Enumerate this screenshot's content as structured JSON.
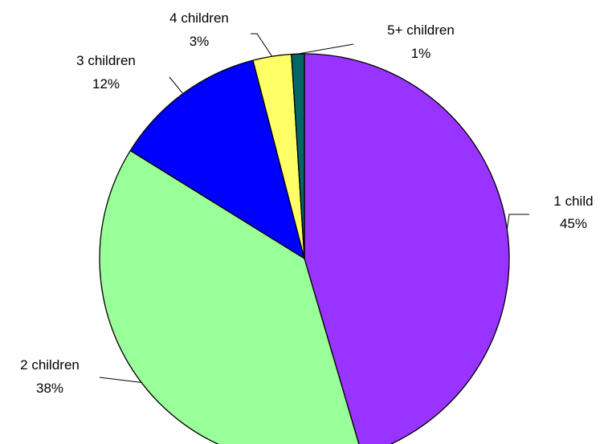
{
  "chart_data": {
    "type": "pie",
    "title": "",
    "slices": [
      {
        "label": "1 child",
        "value": 45,
        "display": "45%",
        "color": "#9933FF"
      },
      {
        "label": "2 children",
        "value": 38,
        "display": "38%",
        "color": "#99FF99"
      },
      {
        "label": "3 children",
        "value": 12,
        "display": "12%",
        "color": "#0000FF"
      },
      {
        "label": "4 children",
        "value": 3,
        "display": "3%",
        "color": "#FFFF66"
      },
      {
        "label": "5+ children",
        "value": 1,
        "display": "1%",
        "color": "#006666"
      }
    ],
    "start_angle_deg": 0,
    "direction": "clockwise",
    "legend": "none",
    "data_labels": "outside with leader lines"
  }
}
